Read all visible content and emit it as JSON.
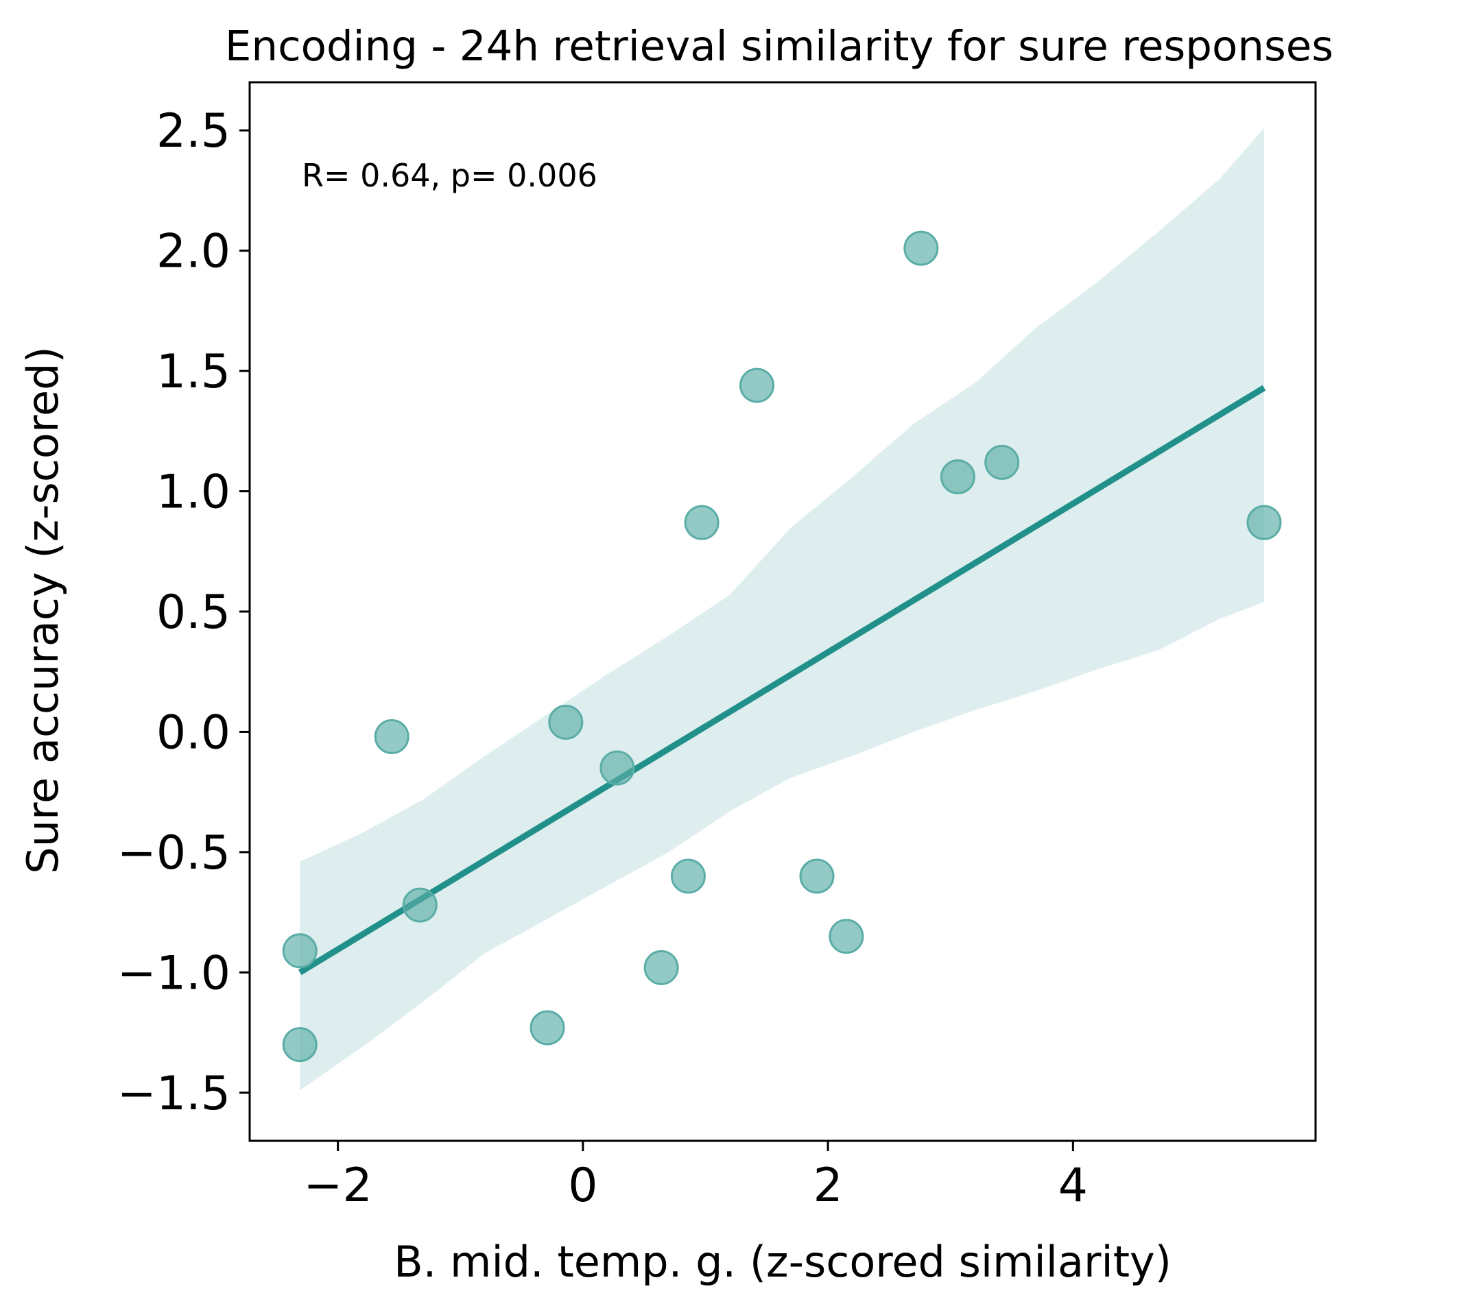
{
  "chart_data": {
    "type": "scatter",
    "title": "Encoding - 24h retrieval similarity for sure responses",
    "xlabel": "B. mid. temp. g. (z-scored similarity)",
    "ylabel": "Sure accuracy (z-scored)",
    "annotation": "R= 0.64, p= 0.006",
    "xlim": [
      -2.72,
      5.98
    ],
    "ylim": [
      -1.7,
      2.7
    ],
    "xticks": [
      -2,
      0,
      2,
      4
    ],
    "xtick_labels": [
      "−2",
      "0",
      "2",
      "4"
    ],
    "yticks": [
      -1.5,
      -1.0,
      -0.5,
      0.0,
      0.5,
      1.0,
      1.5,
      2.0,
      2.5
    ],
    "ytick_labels": [
      "−1.5",
      "−1.0",
      "−0.5",
      "0.0",
      "0.5",
      "1.0",
      "1.5",
      "2.0",
      "2.5"
    ],
    "grid": false,
    "colors": {
      "points": "#5aada6",
      "line": "#22908a",
      "band": "#22908a"
    },
    "points": [
      {
        "x": -2.31,
        "y": -0.91
      },
      {
        "x": -2.31,
        "y": -1.3
      },
      {
        "x": -1.56,
        "y": -0.02
      },
      {
        "x": -1.33,
        "y": -0.72
      },
      {
        "x": -0.29,
        "y": -1.23
      },
      {
        "x": -0.14,
        "y": 0.04
      },
      {
        "x": 0.28,
        "y": -0.15
      },
      {
        "x": 0.64,
        "y": -0.98
      },
      {
        "x": 0.86,
        "y": -0.6
      },
      {
        "x": 0.97,
        "y": 0.87
      },
      {
        "x": 1.42,
        "y": 1.44
      },
      {
        "x": 1.91,
        "y": -0.6
      },
      {
        "x": 2.15,
        "y": -0.85
      },
      {
        "x": 2.76,
        "y": 2.01
      },
      {
        "x": 3.06,
        "y": 1.06
      },
      {
        "x": 3.42,
        "y": 1.12
      },
      {
        "x": 5.56,
        "y": 0.87
      }
    ],
    "regression": {
      "x": [
        -2.31,
        5.56
      ],
      "y": [
        -1.0,
        1.43
      ]
    },
    "confidence_band": {
      "x": [
        -2.31,
        -1.8,
        -1.3,
        -0.8,
        -0.3,
        0.2,
        0.7,
        1.2,
        1.7,
        2.2,
        2.7,
        3.2,
        3.7,
        4.2,
        4.7,
        5.2,
        5.56
      ],
      "upper": [
        -0.54,
        -0.42,
        -0.28,
        -0.1,
        0.07,
        0.24,
        0.4,
        0.57,
        0.85,
        1.06,
        1.28,
        1.45,
        1.68,
        1.87,
        2.08,
        2.3,
        2.51
      ],
      "lower": [
        -1.49,
        -1.31,
        -1.12,
        -0.92,
        -0.78,
        -0.64,
        -0.5,
        -0.33,
        -0.19,
        -0.1,
        0.0,
        0.09,
        0.17,
        0.26,
        0.34,
        0.47,
        0.54
      ]
    }
  }
}
